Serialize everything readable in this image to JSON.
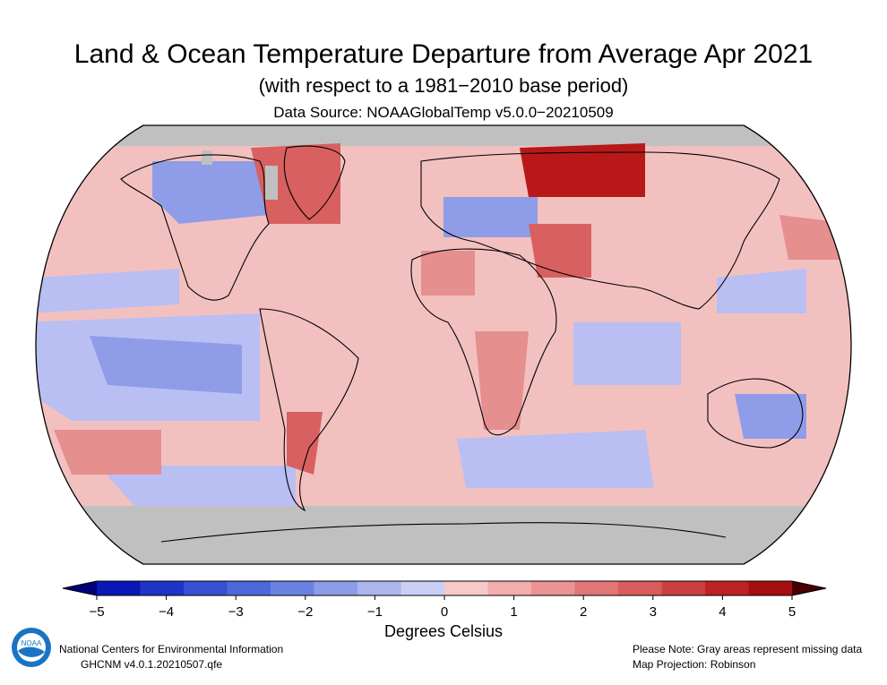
{
  "title": {
    "line1": "Land & Ocean Temperature Departure from Average Apr 2021",
    "line2": "(with respect to a 1981−2010 base period)",
    "line3": "Data Source: NOAAGlobalTemp v5.0.0−20210509"
  },
  "colorbar": {
    "ticks": [
      "−5",
      "−4",
      "−3",
      "−2",
      "−1",
      "0",
      "1",
      "2",
      "3",
      "4",
      "5"
    ],
    "range": [
      -5,
      5
    ],
    "colors": [
      "#0a17b8",
      "#1f33c7",
      "#3550d2",
      "#4c68db",
      "#6a82e2",
      "#8b9de9",
      "#abb6ef",
      "#c9cff5",
      "#f7c9c9",
      "#f2adad",
      "#eb9292",
      "#e27676",
      "#d85c5c",
      "#cc3f3f",
      "#bd2222",
      "#a50f0f"
    ],
    "label": "Degrees Celsius",
    "under_color": "#00007a",
    "over_color": "#4a0000"
  },
  "map": {
    "projection_note": "Map Projection: Robinson",
    "missing_note": "Please Note: Gray areas represent missing data",
    "missing_color": "#c0c0c0",
    "ocean_base_color": "#f3c0c0",
    "cool_color": "#b9bff2",
    "warm_color": "#e58f8f"
  },
  "footer": {
    "org": "National Centers for Environmental Information",
    "dataset": "GHCNM v4.0.1.20210507.qfe"
  },
  "logo": {
    "text": "NOAA",
    "icon": "noaa-logo-icon"
  }
}
